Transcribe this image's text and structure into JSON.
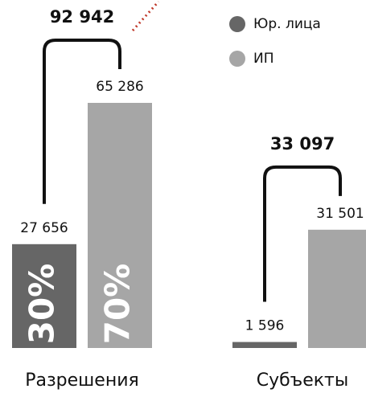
{
  "chart_data": {
    "type": "bar",
    "categories": [
      "Разрешения",
      "Субъекты"
    ],
    "series": [
      {
        "name": "Юр. лица",
        "color": "#666666",
        "values": [
          27656,
          1596
        ],
        "value_labels": [
          "27 656",
          "1 596"
        ],
        "percent_labels": [
          "30%",
          null
        ]
      },
      {
        "name": "ИП",
        "color": "#a6a6a6",
        "values": [
          65286,
          31501
        ],
        "value_labels": [
          "65 286",
          "31 501"
        ],
        "percent_labels": [
          "70%",
          null
        ]
      }
    ],
    "totals": {
      "values": [
        92942,
        33097
      ],
      "value_labels": [
        "92 942",
        "33 097"
      ]
    }
  }
}
